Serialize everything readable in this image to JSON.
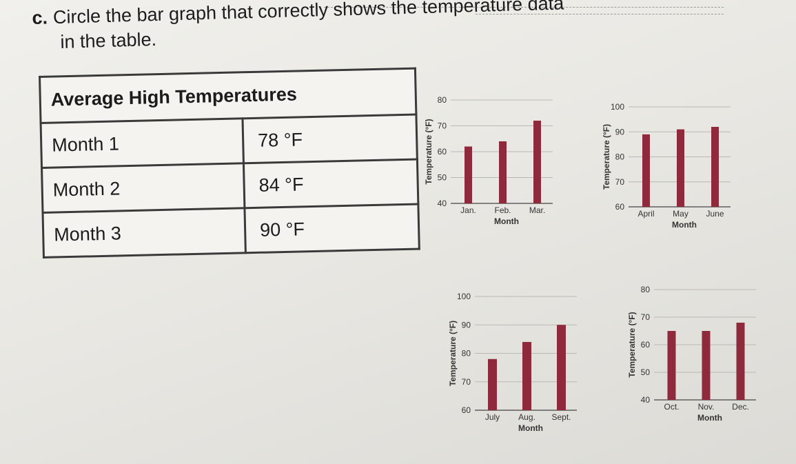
{
  "question": {
    "letter": "c.",
    "text_line1": "Circle the bar graph that correctly shows the temperature data",
    "text_line2": "in the table."
  },
  "table": {
    "title": "Average High Temperatures",
    "rows": [
      {
        "month": "Month 1",
        "value": "78 °F"
      },
      {
        "month": "Month 2",
        "value": "84 °F"
      },
      {
        "month": "Month 3",
        "value": "90 °F"
      }
    ]
  },
  "chart_data": [
    {
      "type": "bar",
      "categories": [
        "Jan.",
        "Feb.",
        "Mar."
      ],
      "values": [
        62,
        64,
        72
      ],
      "xlabel": "Month",
      "ylabel": "Temperature (°F)",
      "ylim": [
        40,
        80
      ],
      "yticks": [
        "40",
        "50",
        "60",
        "70",
        "80"
      ],
      "grid": true,
      "bar_color": "#8e2a3c"
    },
    {
      "type": "bar",
      "categories": [
        "April",
        "May",
        "June"
      ],
      "values": [
        89,
        91,
        92
      ],
      "xlabel": "Month",
      "ylabel": "Temperature (°F)",
      "ylim": [
        60,
        100
      ],
      "yticks": [
        "60",
        "70",
        "80",
        "90",
        "100"
      ],
      "grid": true,
      "bar_color": "#8e2a3c"
    },
    {
      "type": "bar",
      "categories": [
        "July",
        "Aug.",
        "Sept."
      ],
      "values": [
        78,
        84,
        90
      ],
      "xlabel": "Month",
      "ylabel": "Temperature (°F)",
      "ylim": [
        60,
        100
      ],
      "yticks": [
        "60",
        "70",
        "80",
        "90",
        "100"
      ],
      "grid": true,
      "bar_color": "#8e2a3c"
    },
    {
      "type": "bar",
      "categories": [
        "Oct.",
        "Nov.",
        "Dec."
      ],
      "values": [
        65,
        65,
        68
      ],
      "xlabel": "Month",
      "ylabel": "Temperature (°F)",
      "ylim": [
        40,
        80
      ],
      "yticks": [
        "40",
        "50",
        "60",
        "70",
        "80"
      ],
      "grid": true,
      "bar_color": "#8e2a3c"
    }
  ]
}
